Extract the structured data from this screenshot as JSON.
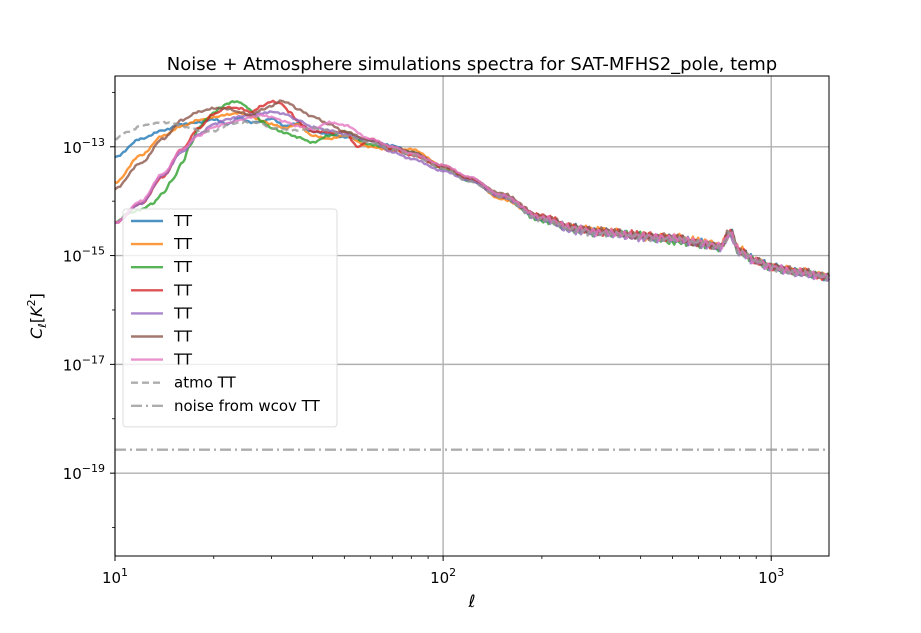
{
  "chart_data": {
    "type": "line",
    "title": "Noise + Atmosphere simulations spectra for SAT-MFHS2_pole, temp",
    "xlabel": "ℓ",
    "ylabel": "C_ℓ[K²]",
    "xscale": "log",
    "yscale": "log",
    "xlim": [
      10,
      1500
    ],
    "ylim": [
      3e-21,
      2e-12
    ],
    "grid": true,
    "legend_position": "center-left",
    "x_ticks": [
      {
        "value": 10,
        "base": "10",
        "exp": "1"
      },
      {
        "value": 100,
        "base": "10",
        "exp": "2"
      },
      {
        "value": 1000,
        "base": "10",
        "exp": "3"
      }
    ],
    "y_ticks": [
      {
        "value": 1e-13,
        "base": "10",
        "exp": "−13"
      },
      {
        "value": 1e-15,
        "base": "10",
        "exp": "−15"
      },
      {
        "value": 1e-17,
        "base": "10",
        "exp": "−17"
      },
      {
        "value": 1e-19,
        "base": "10",
        "exp": "−19"
      }
    ],
    "series": [
      {
        "name": "TT",
        "color": "#1f77b4",
        "style": "solid",
        "x": [
          10,
          12,
          14,
          16,
          18,
          20,
          22,
          24,
          26,
          28,
          30,
          33,
          36,
          40,
          45,
          50,
          60,
          70,
          80,
          100,
          120,
          150,
          200,
          250,
          300,
          400,
          500,
          600,
          700,
          750,
          800,
          900,
          1000,
          1200,
          1500
        ],
        "y": [
          6.5e-14,
          1.4e-13,
          2e-13,
          2.6e-13,
          2.8e-13,
          3.2e-13,
          2.6e-13,
          3.4e-13,
          2.8e-13,
          2.9e-13,
          3.3e-13,
          2.4e-13,
          2.7e-13,
          1.9e-13,
          1.7e-13,
          1.5e-13,
          1.3e-13,
          1.05e-13,
          8e-14,
          4.5e-14,
          2.4e-14,
          1.3e-14,
          4.8e-15,
          3.3e-15,
          2.8e-15,
          2.3e-15,
          2.1e-15,
          1.8e-15,
          1.5e-15,
          2.8e-15,
          1.2e-15,
          8.5e-16,
          6.5e-16,
          5e-16,
          4e-16
        ]
      },
      {
        "name": "TT",
        "color": "#ff7f0e",
        "style": "solid",
        "x": [
          10,
          12,
          14,
          16,
          18,
          20,
          22,
          24,
          26,
          28,
          30,
          33,
          36,
          40,
          45,
          50,
          60,
          70,
          80,
          100,
          120,
          150,
          200,
          250,
          300,
          400,
          500,
          600,
          700,
          750,
          800,
          900,
          1000,
          1200,
          1500
        ],
        "y": [
          2.2e-14,
          7e-14,
          1.6e-13,
          2.4e-13,
          3.1e-13,
          3.5e-13,
          3.9e-13,
          4.2e-13,
          3.6e-13,
          3e-13,
          2.6e-13,
          2.2e-13,
          2.6e-13,
          1.6e-13,
          1.4e-13,
          1.6e-13,
          1e-13,
          8.5e-14,
          9e-14,
          4.5e-14,
          2.6e-14,
          1.1e-14,
          5e-15,
          3.2e-15,
          3e-15,
          2.2e-15,
          2.2e-15,
          1.9e-15,
          1.6e-15,
          2.5e-15,
          1.3e-15,
          8e-16,
          6.3e-16,
          5.2e-16,
          4.2e-16
        ]
      },
      {
        "name": "TT",
        "color": "#2ca02c",
        "style": "solid",
        "x": [
          10,
          11,
          12,
          13,
          14,
          15,
          16,
          17,
          18,
          19,
          20,
          21,
          22,
          23,
          24,
          25,
          26,
          27,
          28,
          30,
          33,
          36,
          40,
          45,
          50,
          60,
          70,
          80,
          100,
          120,
          150,
          200,
          250,
          300,
          400,
          500,
          600,
          700,
          750,
          800,
          900,
          1000,
          1200,
          1500
        ],
        "y": [
          4e-15,
          6e-15,
          7e-15,
          9e-15,
          1.4e-14,
          2.5e-14,
          5e-14,
          1.1e-13,
          2.2e-13,
          3.2e-13,
          4.2e-13,
          5.3e-13,
          6.2e-13,
          6.8e-13,
          6.6e-13,
          5.6e-13,
          4.6e-13,
          3.6e-13,
          2.9e-13,
          2.2e-13,
          1.8e-13,
          1.5e-13,
          1.2e-13,
          1.6e-13,
          1.9e-13,
          1.1e-13,
          9e-14,
          8e-14,
          4e-14,
          2.4e-14,
          1.2e-14,
          4.4e-15,
          3e-15,
          2.6e-15,
          2.4e-15,
          1.8e-15,
          1.6e-15,
          1.4e-15,
          2.6e-15,
          1.1e-15,
          8e-16,
          6e-16,
          4.8e-16,
          4.2e-16
        ]
      },
      {
        "name": "TT",
        "color": "#d62728",
        "style": "solid",
        "x": [
          10,
          12,
          14,
          16,
          18,
          20,
          22,
          24,
          26,
          28,
          30,
          32,
          34,
          36,
          38,
          40,
          43,
          46,
          50,
          55,
          60,
          70,
          80,
          100,
          120,
          150,
          200,
          250,
          300,
          400,
          500,
          600,
          700,
          750,
          800,
          900,
          1000,
          1200,
          1500
        ],
        "y": [
          4e-15,
          9e-15,
          2.8e-14,
          9e-14,
          2.2e-13,
          4e-13,
          5.3e-13,
          5.1e-13,
          4.3e-13,
          5.6e-13,
          6.8e-13,
          6.3e-13,
          4.4e-13,
          3e-13,
          2.3e-13,
          1.9e-13,
          1.9e-13,
          1.8e-13,
          1.9e-13,
          1e-13,
          1.4e-13,
          9e-14,
          7e-14,
          4.2e-14,
          2.6e-14,
          1.2e-14,
          5.4e-15,
          3.3e-15,
          2.7e-15,
          2.5e-15,
          2.1e-15,
          1.7e-15,
          1.5e-15,
          2.7e-15,
          1.2e-15,
          8e-16,
          6.3e-16,
          5.1e-16,
          4e-16
        ]
      },
      {
        "name": "TT",
        "color": "#9467bd",
        "style": "solid",
        "x": [
          10,
          12,
          14,
          16,
          18,
          20,
          22,
          24,
          26,
          28,
          30,
          33,
          36,
          40,
          45,
          50,
          60,
          70,
          80,
          100,
          120,
          150,
          200,
          250,
          300,
          400,
          500,
          600,
          700,
          750,
          800,
          900,
          1000,
          1200,
          1500
        ],
        "y": [
          4e-15,
          9e-15,
          3e-14,
          8e-14,
          1.7e-13,
          2.6e-13,
          3.2e-13,
          3.6e-13,
          3.9e-13,
          4.1e-13,
          4.4e-13,
          4e-13,
          3.1e-13,
          2.3e-13,
          2e-13,
          1.7e-13,
          1.3e-13,
          8e-14,
          6e-14,
          3.6e-14,
          2.4e-14,
          1.2e-14,
          4.6e-15,
          2.8e-15,
          2.6e-15,
          2.1e-15,
          2e-15,
          1.6e-15,
          1.4e-15,
          2.3e-15,
          1.1e-15,
          7.5e-16,
          6e-16,
          4.6e-16,
          4e-16
        ]
      },
      {
        "name": "TT",
        "color": "#8c564b",
        "style": "solid",
        "x": [
          10,
          12,
          14,
          16,
          18,
          20,
          22,
          24,
          26,
          28,
          30,
          32,
          34,
          36,
          40,
          45,
          50,
          60,
          70,
          80,
          100,
          120,
          150,
          200,
          250,
          300,
          400,
          500,
          600,
          700,
          750,
          800,
          900,
          1000,
          1200,
          1500
        ],
        "y": [
          1.7e-14,
          5e-14,
          1.4e-13,
          3.1e-13,
          4.4e-13,
          5.1e-13,
          5e-13,
          4.3e-13,
          3.8e-13,
          4.8e-13,
          5.6e-13,
          7e-13,
          6.3e-13,
          4.9e-13,
          3.6e-13,
          2.6e-13,
          1.9e-13,
          1.3e-13,
          1e-13,
          8e-14,
          4.4e-14,
          2.7e-14,
          1.4e-14,
          5.2e-15,
          3.3e-15,
          2.9e-15,
          2.3e-15,
          2.2e-15,
          1.7e-15,
          1.5e-15,
          2.9e-15,
          1.2e-15,
          8.2e-16,
          6.3e-16,
          5.2e-16,
          4.3e-16
        ]
      },
      {
        "name": "TT",
        "color": "#e377c2",
        "style": "solid",
        "x": [
          10,
          12,
          14,
          16,
          18,
          20,
          22,
          24,
          26,
          28,
          30,
          33,
          36,
          40,
          45,
          50,
          60,
          70,
          80,
          100,
          120,
          150,
          200,
          250,
          300,
          400,
          500,
          600,
          700,
          750,
          800,
          900,
          1000,
          1200,
          1500
        ],
        "y": [
          4e-15,
          1e-14,
          3.2e-14,
          9e-14,
          1.6e-13,
          2.3e-13,
          2.7e-13,
          3.1e-13,
          3.5e-13,
          3.8e-13,
          3.5e-13,
          2.9e-13,
          2.4e-13,
          2.1e-13,
          2.8e-13,
          2.5e-13,
          1.4e-13,
          1e-13,
          7.5e-14,
          4.6e-14,
          2.8e-14,
          1.3e-14,
          5e-15,
          3.2e-15,
          2.7e-15,
          2.3e-15,
          2.1e-15,
          1.8e-15,
          1.5e-15,
          2.6e-15,
          1.2e-15,
          8e-16,
          6.2e-16,
          5e-16,
          4.1e-16
        ]
      },
      {
        "name": "atmo TT",
        "color": "#999999",
        "style": "dashed",
        "x": [
          10,
          11,
          12,
          13,
          14,
          15,
          16,
          17,
          18,
          19,
          20,
          21,
          22,
          24,
          26,
          28,
          30,
          33,
          36,
          40,
          45,
          50,
          60,
          70,
          80,
          100,
          120,
          150,
          200,
          250,
          300,
          400,
          500,
          600,
          700,
          750,
          800,
          900,
          1000,
          1200,
          1500
        ],
        "y": [
          1.4e-13,
          1.9e-13,
          2.4e-13,
          2.7e-13,
          2.8e-13,
          2.7e-13,
          2.4e-13,
          2.2e-13,
          2e-13,
          1.9e-13,
          1.9e-13,
          2.2e-13,
          2.5e-13,
          2.8e-13,
          2.9e-13,
          2.6e-13,
          2.2e-13,
          2.1e-13,
          2e-13,
          2.2e-13,
          2e-13,
          1.6e-13,
          1.2e-13,
          9e-14,
          7e-14,
          4e-14,
          2.3e-14,
          1.2e-14,
          4.5e-15,
          2.9e-15,
          2.6e-15,
          2.2e-15,
          2e-15,
          1.7e-15,
          1.5e-15,
          2.4e-15,
          1.1e-15,
          7.8e-16,
          6e-16,
          4.9e-16,
          4e-16
        ]
      },
      {
        "name": "noise from wcov TT",
        "color": "#999999",
        "style": "dashdot",
        "x": [
          10,
          1500
        ],
        "y": [
          2.7e-19,
          2.7e-19
        ]
      }
    ]
  }
}
